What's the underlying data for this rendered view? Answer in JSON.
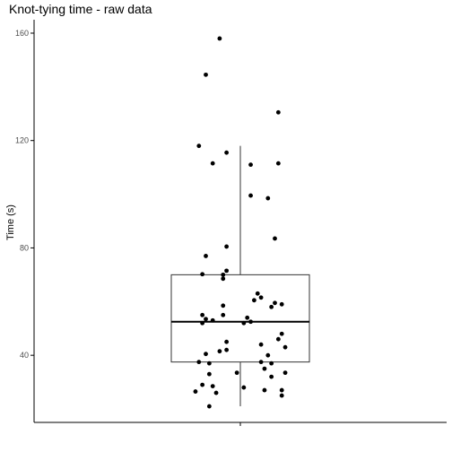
{
  "chart_data": {
    "type": "box",
    "title": "Knot-tying time - raw data",
    "xlabel": "",
    "ylabel": "Time (s)",
    "ylim": [
      15,
      165
    ],
    "yticks": [
      40,
      80,
      120,
      160
    ],
    "grid": false,
    "legend": "none",
    "colors": {
      "points": "#000000",
      "box_stroke": "#333333",
      "median": "#000000",
      "axis": "#000000",
      "tick_text": "#4d4d4d"
    },
    "box": {
      "whisker_low": 21,
      "q1": 37.5,
      "median": 52.5,
      "q3": 70,
      "whisker_high": 118
    },
    "points": [
      {
        "x": -0.06,
        "y": 158
      },
      {
        "x": -0.1,
        "y": 144.5
      },
      {
        "x": 0.11,
        "y": 130.5
      },
      {
        "x": -0.12,
        "y": 118
      },
      {
        "x": -0.04,
        "y": 115.5
      },
      {
        "x": -0.08,
        "y": 111.5
      },
      {
        "x": 0.03,
        "y": 111
      },
      {
        "x": 0.11,
        "y": 111.5
      },
      {
        "x": 0.03,
        "y": 99.5
      },
      {
        "x": 0.08,
        "y": 98.5
      },
      {
        "x": 0.1,
        "y": 83.5
      },
      {
        "x": -0.04,
        "y": 80.5
      },
      {
        "x": -0.1,
        "y": 77
      },
      {
        "x": -0.04,
        "y": 71.5
      },
      {
        "x": -0.11,
        "y": 70.2
      },
      {
        "x": -0.05,
        "y": 70
      },
      {
        "x": -0.05,
        "y": 68.5
      },
      {
        "x": 0.05,
        "y": 63
      },
      {
        "x": 0.06,
        "y": 61.5
      },
      {
        "x": 0.04,
        "y": 60.5
      },
      {
        "x": 0.1,
        "y": 59.5
      },
      {
        "x": 0.12,
        "y": 59
      },
      {
        "x": 0.09,
        "y": 58
      },
      {
        "x": -0.05,
        "y": 58.5
      },
      {
        "x": -0.11,
        "y": 55
      },
      {
        "x": -0.05,
        "y": 55
      },
      {
        "x": -0.08,
        "y": 53
      },
      {
        "x": -0.1,
        "y": 53.5
      },
      {
        "x": -0.11,
        "y": 52
      },
      {
        "x": 0.02,
        "y": 54
      },
      {
        "x": 0.03,
        "y": 52.5
      },
      {
        "x": 0.01,
        "y": 52
      },
      {
        "x": 0.12,
        "y": 48
      },
      {
        "x": 0.11,
        "y": 46
      },
      {
        "x": -0.04,
        "y": 45
      },
      {
        "x": 0.06,
        "y": 44
      },
      {
        "x": 0.13,
        "y": 43
      },
      {
        "x": -0.04,
        "y": 42
      },
      {
        "x": -0.06,
        "y": 41.5
      },
      {
        "x": -0.1,
        "y": 40.5
      },
      {
        "x": 0.08,
        "y": 40
      },
      {
        "x": -0.12,
        "y": 37.5
      },
      {
        "x": -0.09,
        "y": 37
      },
      {
        "x": 0.09,
        "y": 37
      },
      {
        "x": 0.06,
        "y": 37.5
      },
      {
        "x": 0.07,
        "y": 35
      },
      {
        "x": -0.01,
        "y": 33.5
      },
      {
        "x": 0.13,
        "y": 33.5
      },
      {
        "x": -0.09,
        "y": 33
      },
      {
        "x": 0.09,
        "y": 32
      },
      {
        "x": -0.11,
        "y": 29
      },
      {
        "x": 0.01,
        "y": 28
      },
      {
        "x": -0.08,
        "y": 28.5
      },
      {
        "x": 0.07,
        "y": 27
      },
      {
        "x": -0.13,
        "y": 26.5
      },
      {
        "x": 0.12,
        "y": 27
      },
      {
        "x": -0.07,
        "y": 26
      },
      {
        "x": 0.12,
        "y": 25
      },
      {
        "x": -0.09,
        "y": 21
      }
    ]
  }
}
